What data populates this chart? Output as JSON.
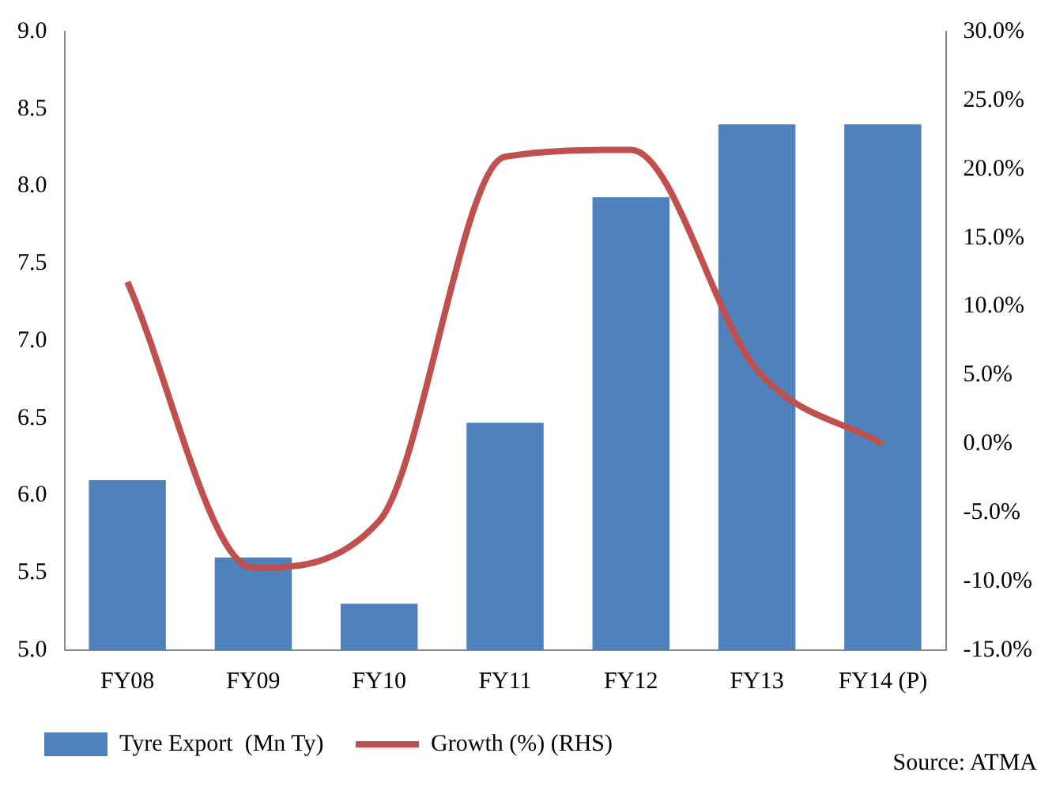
{
  "chart_data": {
    "type": "bar",
    "categories": [
      "FY08",
      "FY09",
      "FY10",
      "FY11",
      "FY12",
      "FY13",
      "FY14 (P)"
    ],
    "series": [
      {
        "name": "Tyre Export  (Mn Ty)",
        "color": "#4f81bd",
        "values": [
          6.1,
          5.6,
          5.3,
          6.47,
          7.93,
          8.4,
          8.4
        ]
      },
      {
        "name": "Growth (%) (RHS)",
        "type": "line",
        "axis": "y2",
        "color": "#c0504d",
        "values": [
          11.8,
          -9.0,
          -5.6,
          20.9,
          21.4,
          5.4,
          0.0
        ]
      }
    ],
    "ylim": [
      5,
      9
    ],
    "yticks": [
      {
        "value": 5,
        "label": "5.0"
      },
      {
        "value": 5.5,
        "label": "5.5"
      },
      {
        "value": 6,
        "label": "6.0"
      },
      {
        "value": 6.5,
        "label": "6.5"
      },
      {
        "value": 7,
        "label": "7.0"
      },
      {
        "value": 7.5,
        "label": "7.5"
      },
      {
        "value": 8,
        "label": "8.0"
      },
      {
        "value": 8.5,
        "label": "8.5"
      },
      {
        "value": 9,
        "label": "9.0"
      }
    ],
    "y2lim": [
      -15,
      30
    ],
    "y2ticks": [
      {
        "value": -15,
        "label": "-15.0%"
      },
      {
        "value": -10,
        "label": "-10.0%"
      },
      {
        "value": -5,
        "label": "-5.0%"
      },
      {
        "value": 0,
        "label": "0.0%"
      },
      {
        "value": 5,
        "label": "5.0%"
      },
      {
        "value": 10,
        "label": "10.0%"
      },
      {
        "value": 15,
        "label": "15.0%"
      },
      {
        "value": 20,
        "label": "20.0%"
      },
      {
        "value": 25,
        "label": "25.0%"
      },
      {
        "value": 30,
        "label": "30.0%"
      }
    ],
    "grid": false,
    "legend": "bottom",
    "marker": "none",
    "line_style": "solid",
    "annotations": [
      "Source: ATMA"
    ]
  }
}
